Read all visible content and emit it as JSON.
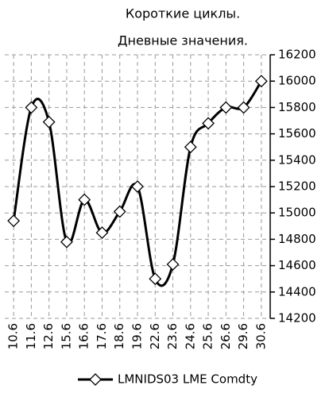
{
  "chart_data": {
    "type": "line",
    "title": [
      "Короткие циклы.",
      "Дневные значения."
    ],
    "categories": [
      "10.6",
      "11.6",
      "12.6",
      "15.6",
      "16.6",
      "17.6",
      "18.6",
      "19.6",
      "22.6",
      "23.6",
      "24.6",
      "25.6",
      "26.6",
      "29.6",
      "30.6"
    ],
    "series": [
      {
        "name": "LMNIDS03 LME Comdty",
        "color": "#000000",
        "values": [
          14940,
          15800,
          15690,
          14780,
          15100,
          14850,
          15010,
          15200,
          14500,
          14610,
          15500,
          15680,
          15800,
          15800,
          16000
        ]
      }
    ],
    "ylim": [
      14200,
      16200
    ],
    "yticks": [
      14200,
      14400,
      14600,
      14800,
      15000,
      15200,
      15400,
      15600,
      15800,
      16000,
      16200
    ],
    "grid": true,
    "y_axis_side": "right",
    "legend": "bottom"
  }
}
